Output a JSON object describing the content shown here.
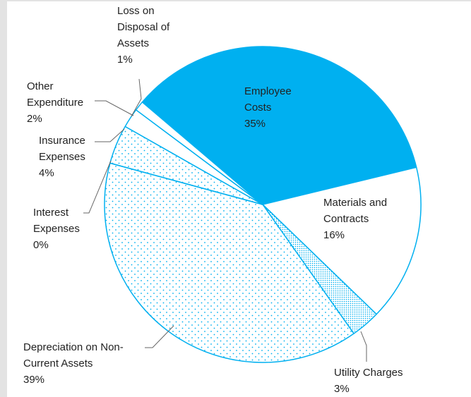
{
  "chart_data": {
    "type": "pie",
    "categories": [
      "Employee Costs",
      "Materials and Contracts",
      "Utility Charges",
      "Depreciation on Non-Current Assets",
      "Interest Expenses",
      "Insurance Expenses",
      "Other Expenditure",
      "Loss on Disposal of Assets"
    ],
    "values": [
      35,
      16,
      3,
      39,
      0,
      4,
      2,
      1
    ],
    "value_labels": [
      "35%",
      "16%",
      "3%",
      "39%",
      "0%",
      "4%",
      "2%",
      "1%"
    ],
    "colors": [
      "#00b0f0",
      "#ffffff",
      "#00b0f0",
      "#00b0f0",
      "#00b0f0",
      "#00b0f0",
      "#ffffff",
      "#ffffff"
    ],
    "fill_patterns": [
      "solid",
      "none",
      "dense-dots",
      "dots",
      "dots",
      "dots",
      "none",
      "none"
    ]
  }
}
